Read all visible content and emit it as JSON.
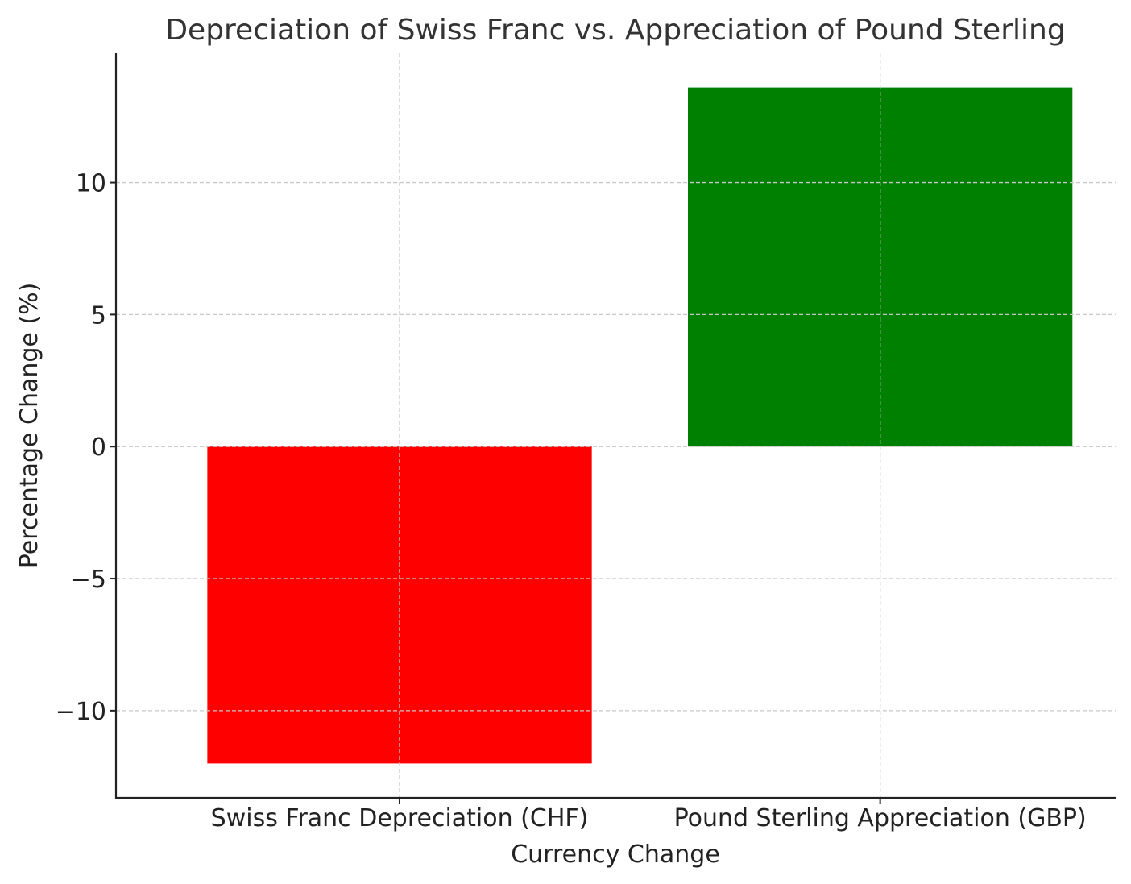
{
  "chart_data": {
    "type": "bar",
    "title": "Depreciation of Swiss Franc vs. Appreciation of Pound Sterling",
    "xlabel": "Currency Change",
    "ylabel": "Percentage Change (%)",
    "categories": [
      "Swiss Franc Depreciation (CHF)",
      "Pound Sterling Appreciation (GBP)"
    ],
    "values": [
      -12,
      13.6
    ],
    "colors": [
      "#ff0000",
      "#008000"
    ],
    "ylim": [
      -13.3,
      14.9
    ],
    "yticks": [
      -10,
      -5,
      0,
      5,
      10
    ],
    "ytick_labels": [
      "−10",
      "−5",
      "0",
      "5",
      "10"
    ],
    "grid": true,
    "legend": "none"
  }
}
